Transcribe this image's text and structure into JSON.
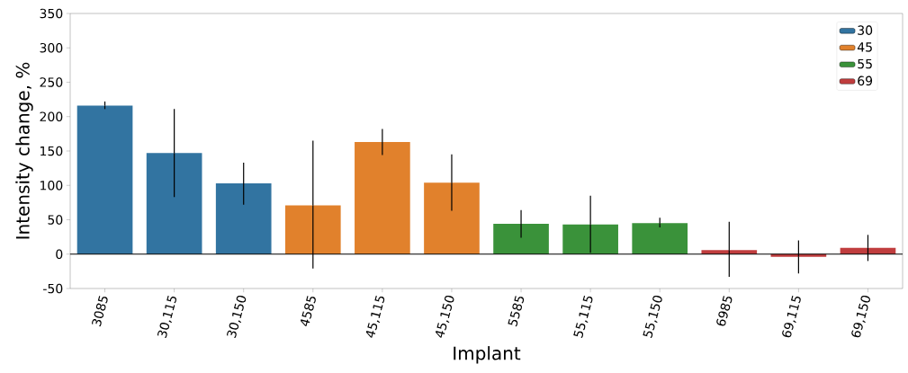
{
  "chart_data": {
    "type": "bar",
    "xlabel": "Implant",
    "ylabel": "Intensity change, %",
    "categories": [
      "3085",
      "30,115",
      "30,150",
      "4585",
      "45,115",
      "45,150",
      "5585",
      "55,115",
      "55,150",
      "6985",
      "69,115",
      "69,150"
    ],
    "series": [
      {
        "name": "30",
        "color": "#3274a1",
        "values": [
          216,
          147,
          103,
          null,
          null,
          null,
          null,
          null,
          null,
          null,
          null,
          null
        ],
        "errors": [
          [
            211,
            222
          ],
          [
            83,
            211
          ],
          [
            72,
            133
          ],
          null,
          null,
          null,
          null,
          null,
          null,
          null,
          null,
          null
        ]
      },
      {
        "name": "45",
        "color": "#e1812c",
        "values": [
          null,
          null,
          null,
          71,
          163,
          104,
          null,
          null,
          null,
          null,
          null,
          null
        ],
        "errors": [
          null,
          null,
          null,
          [
            -21,
            165
          ],
          [
            144,
            182
          ],
          [
            63,
            145
          ],
          null,
          null,
          null,
          null,
          null,
          null
        ]
      },
      {
        "name": "55",
        "color": "#3a923a",
        "values": [
          null,
          null,
          null,
          null,
          null,
          null,
          44,
          43,
          45,
          null,
          null,
          null
        ],
        "errors": [
          null,
          null,
          null,
          null,
          null,
          null,
          [
            24,
            64
          ],
          [
            2,
            85
          ],
          [
            39,
            53
          ],
          null,
          null,
          null
        ]
      },
      {
        "name": "69",
        "color": "#c03d3e",
        "values": [
          null,
          null,
          null,
          null,
          null,
          null,
          null,
          null,
          null,
          6,
          -4,
          9
        ],
        "errors": [
          null,
          null,
          null,
          null,
          null,
          null,
          null,
          null,
          null,
          [
            -33,
            47
          ],
          [
            -28,
            20
          ],
          [
            -10,
            28
          ]
        ]
      }
    ],
    "ylim": [
      -50,
      350
    ],
    "yticks": [
      -50,
      0,
      50,
      100,
      150,
      200,
      250,
      300,
      350
    ],
    "ref_lines": [
      {
        "axis": "y",
        "value": 0
      }
    ],
    "grid": false,
    "legend": "top right"
  }
}
